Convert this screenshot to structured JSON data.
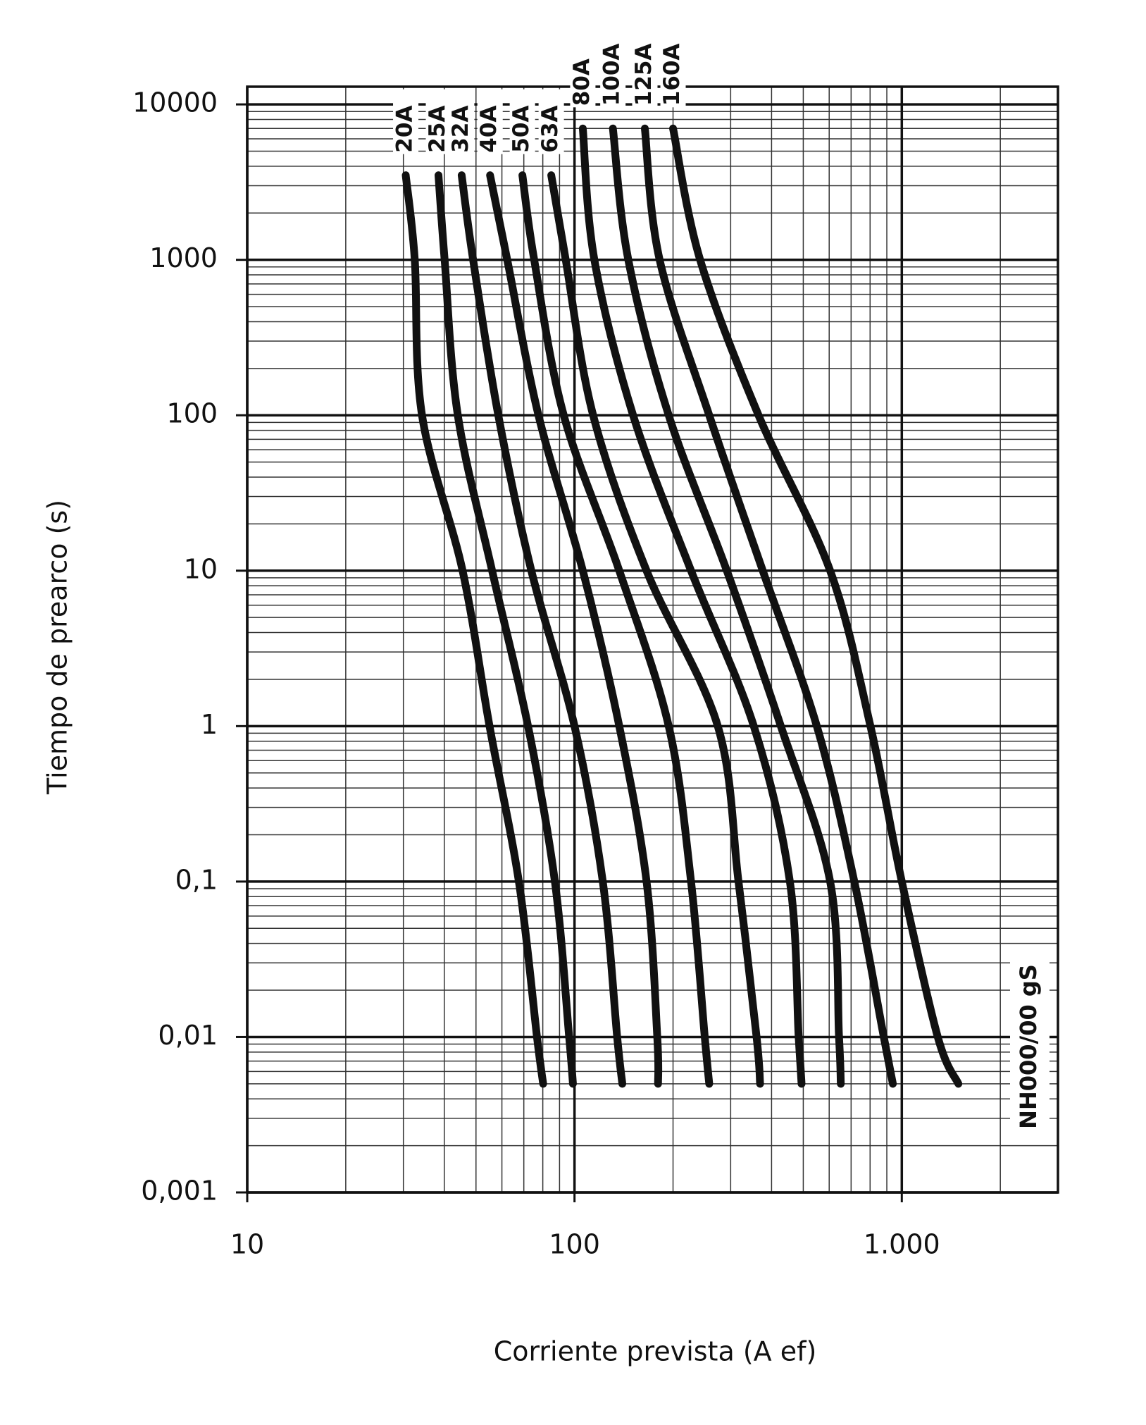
{
  "chart_data": {
    "type": "line",
    "xlabel": "Corriente prevista (A ef)",
    "ylabel": "Tiempo de prearco (s)",
    "annotation": "NH000/00 gS",
    "xscale": "log",
    "yscale": "log",
    "grid": true,
    "xlim": [
      10,
      3000
    ],
    "ylim": [
      0.001,
      13000
    ],
    "xticks": [
      10,
      100,
      {
        "value": 1000,
        "label": "1.000"
      }
    ],
    "yticks": [
      10000,
      1000,
      100,
      10,
      1,
      {
        "value": 0.1,
        "label": "0,1"
      },
      {
        "value": 0.01,
        "label": "0,01"
      },
      {
        "value": 0.001,
        "label": "0,001"
      }
    ],
    "series": [
      {
        "name": "20A",
        "color": "#111111",
        "x": [
          30.5,
          32.5,
          34.2,
          45.5,
          55,
          67.6,
          76.8,
          80.2
        ],
        "values": [
          3500,
          1000,
          100,
          10,
          1,
          0.1,
          0.01,
          0.005
        ]
      },
      {
        "name": "25A",
        "color": "#111111",
        "x": [
          38.4,
          40.1,
          44.0,
          56.0,
          72.1,
          87.1,
          96.3,
          98.9
        ],
        "values": [
          3500,
          1000,
          100,
          10,
          1,
          0.1,
          0.01,
          0.005
        ]
      },
      {
        "name": "32A",
        "color": "#111111",
        "x": [
          45.2,
          49.0,
          58.5,
          73.8,
          100,
          122,
          135,
          140
        ],
        "values": [
          3500,
          1000,
          100,
          10,
          1,
          0.1,
          0.01,
          0.005
        ]
      },
      {
        "name": "40A",
        "color": "#111111",
        "x": [
          55.2,
          62.3,
          77.6,
          106,
          137,
          166,
          179,
          180
        ],
        "values": [
          3500,
          1000,
          100,
          10,
          1,
          0.1,
          0.01,
          0.005
        ]
      },
      {
        "name": "50A",
        "color": "#111111",
        "x": [
          69.3,
          75.3,
          92.7,
          137,
          194,
          227,
          250,
          258
        ],
        "values": [
          3500,
          1000,
          100,
          10,
          1,
          0.1,
          0.01,
          0.005
        ]
      },
      {
        "name": "63A",
        "color": "#111111",
        "x": [
          84.9,
          94,
          114,
          166,
          274,
          317,
          360,
          369
        ],
        "values": [
          3500,
          1000,
          100,
          10,
          1,
          0.1,
          0.01,
          0.005
        ]
      },
      {
        "name": "80A",
        "color": "#111111",
        "x": [
          106,
          115,
          151,
          227,
          353,
          455,
          484,
          494
        ],
        "values": [
          7000,
          1000,
          100,
          10,
          1,
          0.1,
          0.01,
          0.005
        ]
      },
      {
        "name": "100A",
        "color": "#111111",
        "x": [
          131,
          146,
          194,
          292,
          427,
          604,
          643,
          651
        ],
        "values": [
          7000,
          1000,
          100,
          10,
          1,
          0.1,
          0.01,
          0.005
        ]
      },
      {
        "name": "125A",
        "color": "#111111",
        "x": [
          164,
          182,
          258,
          376,
          550,
          716,
          881,
          939
        ],
        "values": [
          7000,
          1000,
          100,
          10,
          1,
          0.1,
          0.01,
          0.005
        ]
      },
      {
        "name": "160A",
        "color": "#111111",
        "x": [
          200,
          242,
          365,
          604,
          802,
          1000,
          1288,
          1489
        ],
        "values": [
          7000,
          1000,
          100,
          10,
          1,
          0.1,
          0.01,
          0.005
        ]
      }
    ]
  }
}
